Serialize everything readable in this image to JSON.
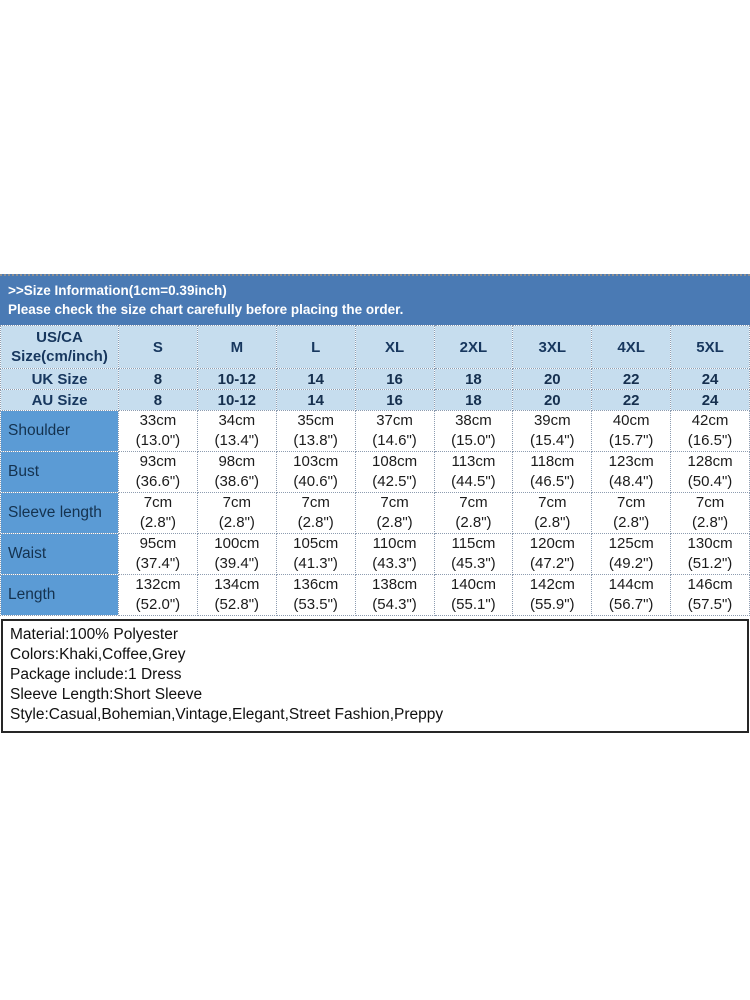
{
  "chart_data": {
    "type": "table",
    "title": ">>Size Information(1cm=0.39inch)",
    "subtitle": "Please check the size chart carefully before placing the order.",
    "corner_header": {
      "line1": "US/CA",
      "line2": "Size(cm/inch)"
    },
    "size_columns": [
      "S",
      "M",
      "L",
      "XL",
      "2XL",
      "3XL",
      "4XL",
      "5XL"
    ],
    "region_rows": [
      {
        "label": "UK Size",
        "values": [
          "8",
          "10-12",
          "14",
          "16",
          "18",
          "20",
          "22",
          "24"
        ]
      },
      {
        "label": "AU Size",
        "values": [
          "8",
          "10-12",
          "14",
          "16",
          "18",
          "20",
          "22",
          "24"
        ]
      }
    ],
    "measurement_rows": [
      {
        "label": "Shoulder",
        "cells": [
          [
            "33cm",
            "(13.0\")"
          ],
          [
            "34cm",
            "(13.4\")"
          ],
          [
            "35cm",
            "(13.8\")"
          ],
          [
            "37cm",
            "(14.6\")"
          ],
          [
            "38cm",
            "(15.0\")"
          ],
          [
            "39cm",
            "(15.4\")"
          ],
          [
            "40cm",
            "(15.7\")"
          ],
          [
            "42cm",
            "(16.5\")"
          ]
        ]
      },
      {
        "label": "Bust",
        "cells": [
          [
            "93cm",
            "(36.6\")"
          ],
          [
            "98cm",
            "(38.6\")"
          ],
          [
            "103cm",
            "(40.6\")"
          ],
          [
            "108cm",
            "(42.5\")"
          ],
          [
            "113cm",
            "(44.5\")"
          ],
          [
            "118cm",
            "(46.5\")"
          ],
          [
            "123cm",
            "(48.4\")"
          ],
          [
            "128cm",
            "(50.4\")"
          ]
        ]
      },
      {
        "label": "Sleeve length",
        "cells": [
          [
            "7cm",
            "(2.8\")"
          ],
          [
            "7cm",
            "(2.8\")"
          ],
          [
            "7cm",
            "(2.8\")"
          ],
          [
            "7cm",
            "(2.8\")"
          ],
          [
            "7cm",
            "(2.8\")"
          ],
          [
            "7cm",
            "(2.8\")"
          ],
          [
            "7cm",
            "(2.8\")"
          ],
          [
            "7cm",
            "(2.8\")"
          ]
        ]
      },
      {
        "label": "Waist",
        "cells": [
          [
            "95cm",
            "(37.4\")"
          ],
          [
            "100cm",
            "(39.4\")"
          ],
          [
            "105cm",
            "(41.3\")"
          ],
          [
            "110cm",
            "(43.3\")"
          ],
          [
            "115cm",
            "(45.3\")"
          ],
          [
            "120cm",
            "(47.2\")"
          ],
          [
            "125cm",
            "(49.2\")"
          ],
          [
            "130cm",
            "(51.2\")"
          ]
        ]
      },
      {
        "label": "Length",
        "cells": [
          [
            "132cm",
            "(52.0\")"
          ],
          [
            "134cm",
            "(52.8\")"
          ],
          [
            "136cm",
            "(53.5\")"
          ],
          [
            "138cm",
            "(54.3\")"
          ],
          [
            "140cm",
            "(55.1\")"
          ],
          [
            "142cm",
            "(55.9\")"
          ],
          [
            "144cm",
            "(56.7\")"
          ],
          [
            "146cm",
            "(57.5\")"
          ]
        ]
      }
    ]
  },
  "details": {
    "lines": [
      "Material:100% Polyester",
      "Colors:Khaki,Coffee,Grey",
      "Package include:1 Dress",
      "Sleeve Length:Short Sleeve",
      "Style:Casual,Bohemian,Vintage,Elegant,Street Fashion,Preppy"
    ]
  },
  "colors": {
    "banner_bg": "#4a7ab4",
    "header_bg": "#c6ddee",
    "label_column_bg": "#5b9bd5",
    "header_text": "#17375e",
    "cell_text": "#1b1b1b",
    "banner_text": "#ffffff"
  }
}
